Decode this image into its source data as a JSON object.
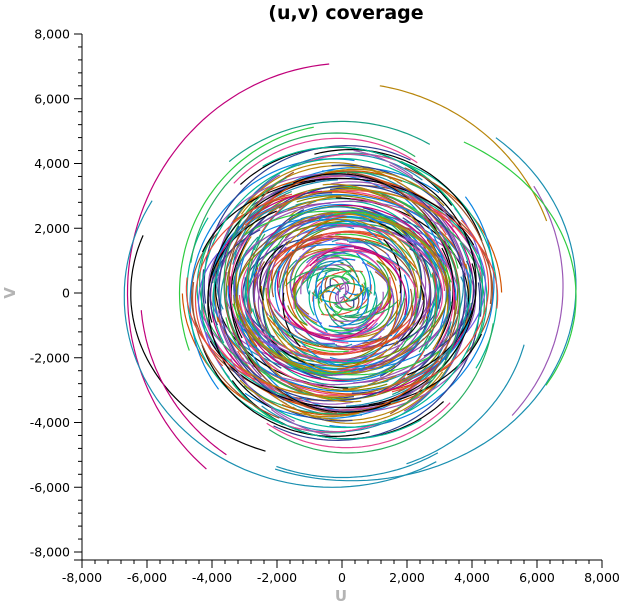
{
  "chart_data": {
    "type": "scatter",
    "title": "(u,v) coverage",
    "xlabel": "U",
    "ylabel": "V",
    "xlim": [
      -8000,
      8000
    ],
    "ylim": [
      -8000,
      8000
    ],
    "xticks": [
      "-8,000",
      "-6,000",
      "-4,000",
      "-2,000",
      "0",
      "2,000",
      "4,000",
      "6,000",
      "8,000"
    ],
    "yticks": [
      "8,000",
      "6,000",
      "4,000",
      "2,000",
      "0",
      "-2,000",
      "-4,000",
      "-6,000",
      "-8,000"
    ],
    "grid": false,
    "legend": "none",
    "palette": [
      "#c0007a",
      "#1a8fb0",
      "#2ecc40",
      "#8e44ad",
      "#000000",
      "#b8860b",
      "#e74c3c",
      "#27ae60",
      "#2c3e90",
      "#d35400",
      "#16a085",
      "#9b59b6",
      "#7f8c00",
      "#e84393",
      "#0984e3",
      "#00b894",
      "#6c5ce7",
      "#a0522d"
    ],
    "outer_tracks": [
      {
        "cx": 200,
        "cy": 0,
        "rx": 6800,
        "ry": 7100,
        "start": 95,
        "end": 230,
        "color": "#c0007a"
      },
      {
        "cx": 300,
        "cy": 200,
        "rx": 6900,
        "ry": 6000,
        "start": 250,
        "end": 410,
        "color": "#1a8fb0"
      },
      {
        "cx": -300,
        "cy": -100,
        "rx": 6400,
        "ry": 5900,
        "start": 150,
        "end": 300,
        "color": "#1a8fb0"
      },
      {
        "cx": 0,
        "cy": 0,
        "rx": 6700,
        "ry": 6500,
        "start": 20,
        "end": 80,
        "color": "#b8860b"
      },
      {
        "cx": 100,
        "cy": 200,
        "rx": 6700,
        "ry": 6200,
        "start": -40,
        "end": 30,
        "color": "#9b59b6"
      },
      {
        "cx": 300,
        "cy": -100,
        "rx": 6900,
        "ry": 5500,
        "start": -30,
        "end": 60,
        "color": "#2ecc40"
      },
      {
        "cx": -200,
        "cy": 0,
        "rx": 6300,
        "ry": 5200,
        "start": 160,
        "end": 250,
        "color": "#000000"
      },
      {
        "cx": 0,
        "cy": 0,
        "rx": 5900,
        "ry": 5700,
        "start": 250,
        "end": 300,
        "color": "#1a8fb0"
      },
      {
        "cx": 0,
        "cy": 0,
        "rx": 6200,
        "ry": 6100,
        "start": 185,
        "end": 235,
        "color": "#c0007a"
      },
      {
        "cx": 0,
        "cy": -200,
        "rx": 5800,
        "ry": 5400,
        "start": 290,
        "end": 345,
        "color": "#1a8fb0"
      },
      {
        "cx": 0,
        "cy": 0,
        "rx": 5400,
        "ry": 5300,
        "start": 60,
        "end": 130,
        "color": "#16a085"
      },
      {
        "cx": 0,
        "cy": 0,
        "rx": 5000,
        "ry": 5200,
        "start": 100,
        "end": 200,
        "color": "#2ecc40"
      }
    ]
  }
}
